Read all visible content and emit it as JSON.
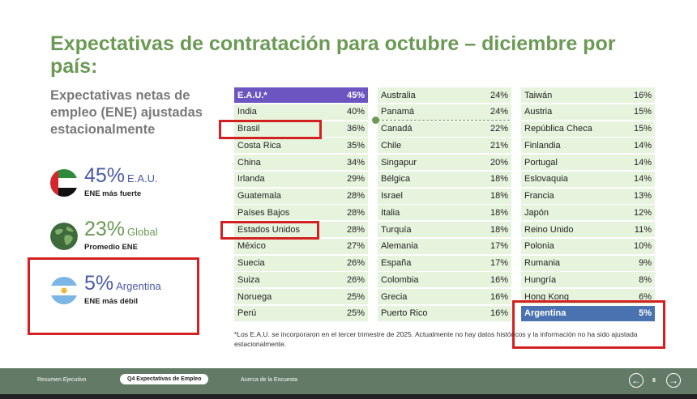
{
  "title": "Expectativas de contratación para octubre – diciembre por país:",
  "subtitle": "Expectativas netas de empleo (ENE) ajustadas estacionalmente",
  "stats": [
    {
      "value": "45%",
      "place": "E.A.U.",
      "caption": "ENE más fuerte",
      "icon": "uae-flag-icon"
    },
    {
      "value": "23%",
      "place": "Global",
      "caption": "Promedio ENE",
      "icon": "globe-icon"
    },
    {
      "value": "5%",
      "place": "Argentina",
      "caption": "ENE más débil",
      "icon": "argentina-flag-icon"
    }
  ],
  "columns": [
    [
      {
        "country": "E.A.U.*",
        "value": "45%"
      },
      {
        "country": "India",
        "value": "40%"
      },
      {
        "country": "Brasil",
        "value": "36%"
      },
      {
        "country": "Costa Rica",
        "value": "35%"
      },
      {
        "country": "China",
        "value": "34%"
      },
      {
        "country": "Irlanda",
        "value": "29%"
      },
      {
        "country": "Guatemala",
        "value": "28%"
      },
      {
        "country": "Países Bajos",
        "value": "28%"
      },
      {
        "country": "Estados Unidos",
        "value": "28%"
      },
      {
        "country": "México",
        "value": "27%"
      },
      {
        "country": "Suecia",
        "value": "26%"
      },
      {
        "country": "Suiza",
        "value": "26%"
      },
      {
        "country": "Noruega",
        "value": "25%"
      },
      {
        "country": "Perú",
        "value": "25%"
      }
    ],
    [
      {
        "country": "Australia",
        "value": "24%"
      },
      {
        "country": "Panamá",
        "value": "24%"
      },
      {
        "country": "Canadá",
        "value": "22%"
      },
      {
        "country": "Chile",
        "value": "21%"
      },
      {
        "country": "Singapur",
        "value": "20%"
      },
      {
        "country": "Bélgica",
        "value": "18%"
      },
      {
        "country": "Israel",
        "value": "18%"
      },
      {
        "country": "Italia",
        "value": "18%"
      },
      {
        "country": "Turquía",
        "value": "18%"
      },
      {
        "country": "Alemania",
        "value": "17%"
      },
      {
        "country": "España",
        "value": "17%"
      },
      {
        "country": "Colombia",
        "value": "16%"
      },
      {
        "country": "Grecia",
        "value": "16%"
      },
      {
        "country": "Puerto Rico",
        "value": "16%"
      }
    ],
    [
      {
        "country": "Taiwán",
        "value": "16%"
      },
      {
        "country": "Austria",
        "value": "15%"
      },
      {
        "country": "República Checa",
        "value": "15%"
      },
      {
        "country": "Finlandia",
        "value": "14%"
      },
      {
        "country": "Portugal",
        "value": "14%"
      },
      {
        "country": "Eslovaquia",
        "value": "14%"
      },
      {
        "country": "Francia",
        "value": "13%"
      },
      {
        "country": "Japón",
        "value": "12%"
      },
      {
        "country": "Reino Unido",
        "value": "11%"
      },
      {
        "country": "Polonia",
        "value": "10%"
      },
      {
        "country": "Rumania",
        "value": "9%"
      },
      {
        "country": "Hungría",
        "value": "8%"
      },
      {
        "country": "Hong Kong",
        "value": "6%"
      },
      {
        "country": "Argentina",
        "value": "5%"
      }
    ]
  ],
  "footnote": "*Los E.A.U. se incorporaron en el tercer trimestre de 2025. Actualmente no hay datos históricos y la información no ha sido ajustada estacionalmente.",
  "footer": {
    "tabs": [
      "Resumen Ejecutivo",
      "Q4 Expectativas de Empleo",
      "Acerca de la Encuesta"
    ],
    "page": "8"
  },
  "colors": {
    "title_green": "#6b9a55",
    "row_bg": "#e6f4de",
    "uae_highlight": "#6c55c0",
    "argentina_highlight": "#4a72b0",
    "annotation_red": "#d32020",
    "footer_bg": "#627a66"
  }
}
